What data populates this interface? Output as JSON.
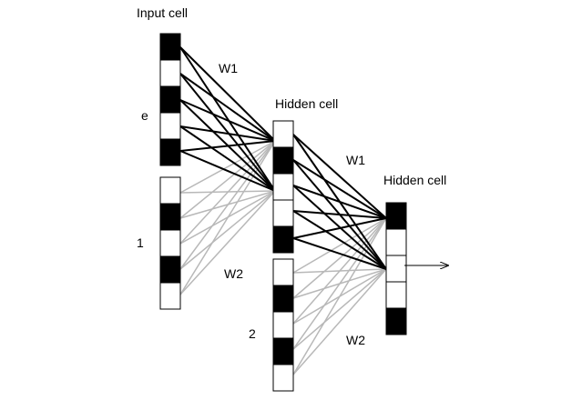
{
  "labels": {
    "input_title": "Input cell",
    "hidden_title_1": "Hidden cell",
    "hidden_title_2": "Hidden cell",
    "input_group_e": "e",
    "input_group_1": "1",
    "hidden_group_2": "2",
    "w1_upper": "W1",
    "w1_lower": "W1",
    "w2_upper": "W2",
    "w2_lower": "W2"
  },
  "columns": {
    "input_e": [
      "black",
      "white",
      "black",
      "white",
      "black"
    ],
    "input_1": [
      "white",
      "black",
      "white",
      "black",
      "white"
    ],
    "hidden1_upper": [
      "white",
      "black",
      "white",
      "white",
      "black"
    ],
    "hidden1_lower": [
      "white",
      "black",
      "white",
      "black",
      "white"
    ],
    "hidden2": [
      "black",
      "white",
      "white",
      "white",
      "black"
    ]
  },
  "colors": {
    "cell_filled": "#000000",
    "cell_empty": "#ffffff",
    "w1_edges": "#000000",
    "w2_edges": "#b8b8b8"
  }
}
